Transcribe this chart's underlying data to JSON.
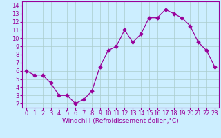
{
  "x": [
    0,
    1,
    2,
    3,
    4,
    5,
    6,
    7,
    8,
    9,
    10,
    11,
    12,
    13,
    14,
    15,
    16,
    17,
    18,
    19,
    20,
    21,
    22,
    23
  ],
  "y": [
    6.0,
    5.5,
    5.5,
    4.5,
    3.0,
    3.0,
    2.0,
    2.5,
    3.5,
    6.5,
    8.5,
    9.0,
    11.0,
    9.5,
    10.5,
    12.5,
    12.5,
    13.5,
    13.0,
    12.5,
    11.5,
    9.5,
    8.5,
    6.5
  ],
  "line_color": "#990099",
  "marker": "D",
  "marker_size": 2.5,
  "bg_color": "#cceeff",
  "grid_color": "#aacccc",
  "xlim": [
    -0.5,
    23.5
  ],
  "ylim": [
    1.5,
    14.5
  ],
  "yticks": [
    2,
    3,
    4,
    5,
    6,
    7,
    8,
    9,
    10,
    11,
    12,
    13,
    14
  ],
  "xticks": [
    0,
    1,
    2,
    3,
    4,
    5,
    6,
    7,
    8,
    9,
    10,
    11,
    12,
    13,
    14,
    15,
    16,
    17,
    18,
    19,
    20,
    21,
    22,
    23
  ],
  "tick_color": "#990099",
  "label_color": "#990099",
  "spine_color": "#990099",
  "xlabel": "Windchill (Refroidissement éolien,°C)",
  "xlabel_fontsize": 6.5,
  "tick_fontsize": 6.0,
  "bottom_bar_color": "#9900aa",
  "bottom_bar_height": 0.12
}
